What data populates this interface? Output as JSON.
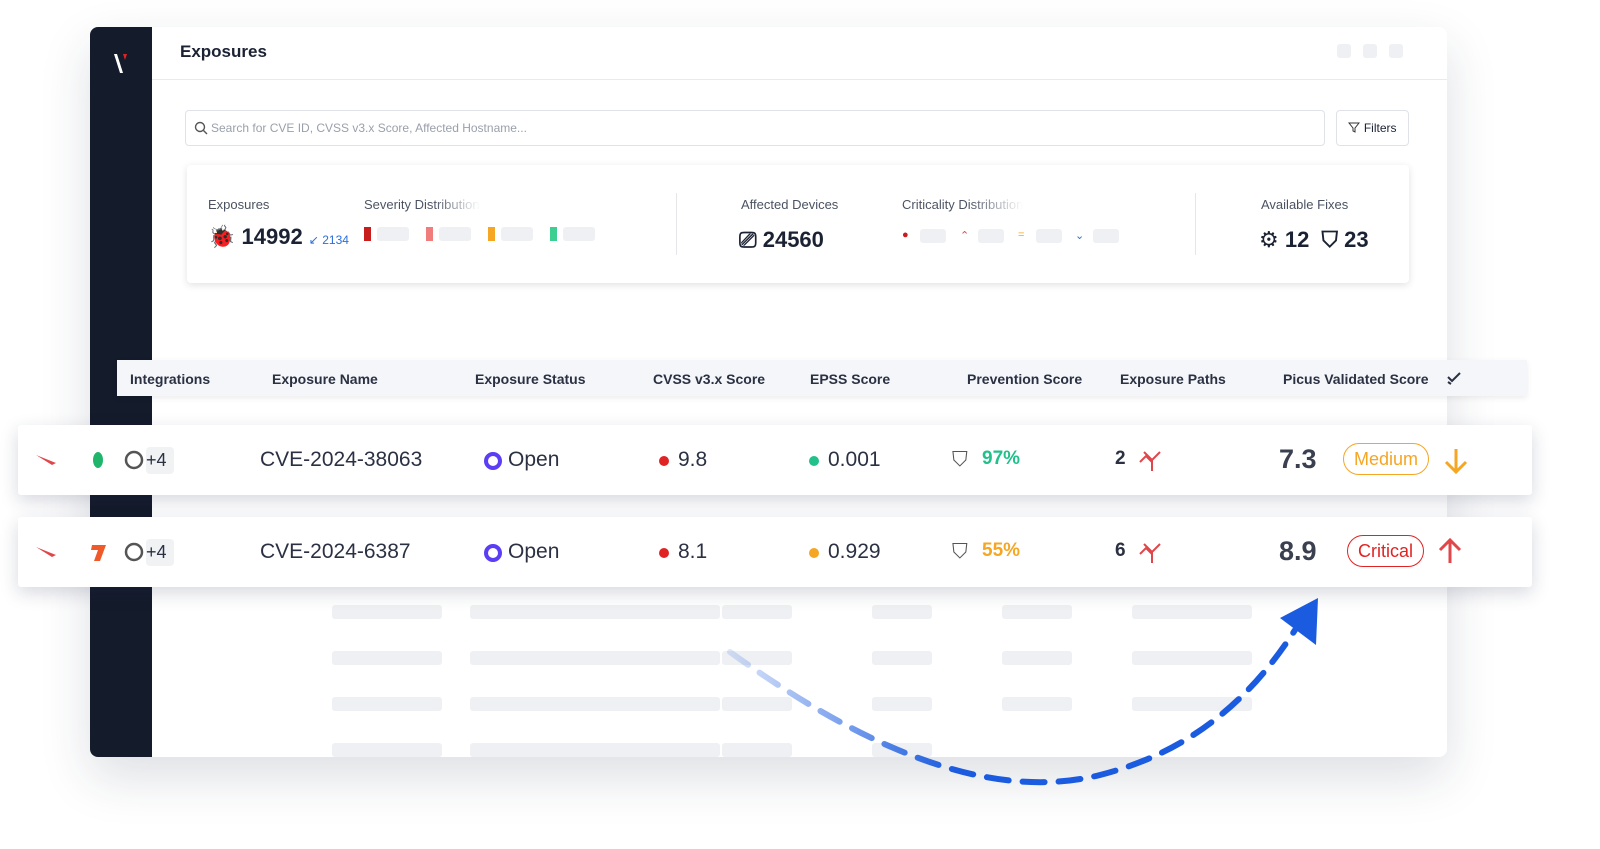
{
  "header": {
    "title": "Exposures"
  },
  "search": {
    "placeholder": "Search for CVE ID, CVSS v3.x Score, Affected Hostname...",
    "filters": "Filters"
  },
  "summary": {
    "exposures": {
      "label": "Exposures",
      "value": "14992",
      "delta": "2134"
    },
    "severity": {
      "label": "Severity Distribution"
    },
    "devices": {
      "label": "Affected Devices",
      "value": "24560"
    },
    "criticality": {
      "label": "Criticality Distribution"
    },
    "fixes": {
      "label": "Available Fixes",
      "values": [
        "12",
        "23"
      ]
    }
  },
  "table": {
    "columns": [
      "Integrations",
      "Exposure Name",
      "Exposure Status",
      "CVSS v3.x Score",
      "EPSS Score",
      "Prevention Score",
      "Exposure Paths",
      "Picus Validated Score"
    ],
    "rows": [
      {
        "more": "+4",
        "name": "CVE-2024-38063",
        "status": "Open",
        "cvss": "9.8",
        "epss": "0.001",
        "prevention": "97%",
        "paths": "2",
        "score": "7.3",
        "level": "Medium"
      },
      {
        "more": "+4",
        "name": "CVE-2024-6387",
        "status": "Open",
        "cvss": "8.1",
        "epss": "0.929",
        "prevention": "55%",
        "paths": "6",
        "score": "8.9",
        "level": "Critical"
      }
    ]
  }
}
